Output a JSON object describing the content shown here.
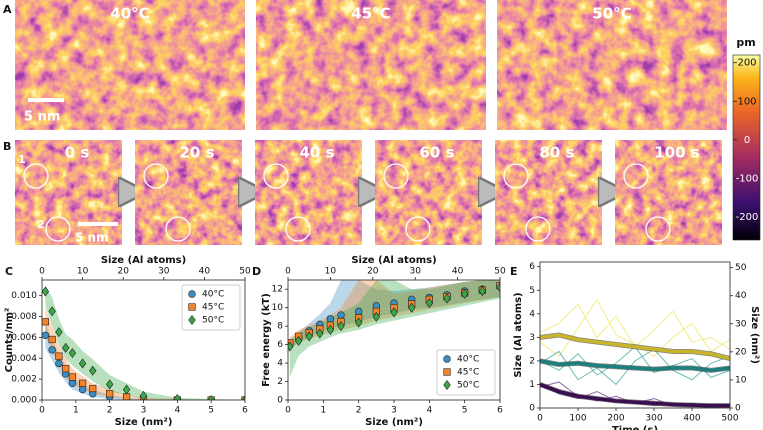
{
  "panel_a": {
    "label": "A",
    "temperatures": [
      "40°C",
      "45°C",
      "50°C"
    ],
    "scale_bar": "5 nm"
  },
  "panel_b": {
    "label": "B",
    "times": [
      "0 s",
      "20 s",
      "40 s",
      "60 s",
      "80 s",
      "100 s"
    ],
    "markers": [
      "1",
      "2"
    ],
    "scale_bar": "5 nm"
  },
  "colorbar": {
    "unit": "pm",
    "ylim": [
      -260,
      220
    ],
    "ticks": [
      200,
      100,
      0,
      -100,
      -200
    ]
  },
  "chart_data": [
    {
      "type": "scatter",
      "panel": "C",
      "xlabel": "Size (nm²)",
      "ylabel": "Counts/nm²",
      "x2label": "Size (Al atoms)",
      "x": [
        0.1,
        0.3,
        0.5,
        0.7,
        0.9,
        1.2,
        1.5,
        2,
        2.5,
        3,
        4,
        5,
        6
      ],
      "xlim": [
        0,
        6
      ],
      "xticks": [
        0,
        1,
        2,
        3,
        4,
        5,
        6
      ],
      "x2lim": [
        0,
        50
      ],
      "x2ticks": [
        0,
        10,
        20,
        30,
        40,
        50
      ],
      "ylim": [
        0,
        0.0115
      ],
      "yticks": [
        {
          "value": 0,
          "label": "0.000"
        },
        {
          "value": 0.002,
          "label": "0.002"
        },
        {
          "value": 0.004,
          "label": "0.004"
        },
        {
          "value": 0.006,
          "label": "0.006"
        },
        {
          "value": 0.008,
          "label": "0.008"
        },
        {
          "value": 0.01,
          "label": "0.010"
        }
      ],
      "legend": "upper right",
      "series": [
        {
          "name": "40°C",
          "color": "#3c8fc4",
          "marker": "circle",
          "values": [
            0.0062,
            0.0048,
            0.0035,
            0.0025,
            0.0016,
            0.001,
            0.0006,
            0.0003,
            0.0001,
            0,
            0,
            0,
            0
          ],
          "lower": [
            0.005,
            0.0038,
            0.0026,
            0.0017,
            0.001,
            0.0006,
            0.0003,
            0.0001,
            0,
            0,
            0,
            0,
            0
          ],
          "upper": [
            0.0074,
            0.0058,
            0.0044,
            0.0033,
            0.0022,
            0.0015,
            0.001,
            0.0005,
            0.0002,
            0.0001,
            0,
            0,
            0
          ]
        },
        {
          "name": "45°C",
          "color": "#f5832a",
          "marker": "square",
          "values": [
            0.0075,
            0.0058,
            0.0042,
            0.003,
            0.0022,
            0.0016,
            0.0011,
            0.0006,
            0.0003,
            0.0001,
            0,
            0,
            0
          ],
          "lower": [
            0.0062,
            0.0047,
            0.0033,
            0.0022,
            0.0015,
            0.001,
            0.0006,
            0.0003,
            0.0001,
            0,
            0,
            0,
            0
          ],
          "upper": [
            0.0088,
            0.007,
            0.0052,
            0.0039,
            0.003,
            0.0023,
            0.0016,
            0.001,
            0.0005,
            0.0002,
            0.0001,
            0,
            0
          ]
        },
        {
          "name": "50°C",
          "color": "#3aa849",
          "marker": "diamond",
          "values": [
            0.0104,
            0.0085,
            0.0065,
            0.005,
            0.0045,
            0.0035,
            0.0028,
            0.0015,
            0.001,
            0.0004,
            0.0001,
            0,
            0
          ],
          "lower": [
            0.009,
            0.0071,
            0.0053,
            0.0039,
            0.0033,
            0.0025,
            0.0018,
            0.0008,
            0.0005,
            0.0001,
            0,
            0,
            0
          ],
          "upper": [
            0.011,
            0.0098,
            0.0078,
            0.0063,
            0.0058,
            0.0047,
            0.0039,
            0.0024,
            0.0016,
            0.0008,
            0.0002,
            0.0001,
            0
          ]
        }
      ]
    },
    {
      "type": "scatter",
      "panel": "D",
      "xlabel": "Size (nm²)",
      "ylabel": "Free energy (kT)",
      "x2label": "Size (Al atoms)",
      "x": [
        0.05,
        0.3,
        0.6,
        0.9,
        1.2,
        1.5,
        2,
        2.5,
        3,
        3.5,
        4,
        4.5,
        5,
        5.5,
        6
      ],
      "xlim": [
        0,
        6
      ],
      "xticks": [
        0,
        1,
        2,
        3,
        4,
        5,
        6
      ],
      "x2lim": [
        0,
        50
      ],
      "x2ticks": [
        0,
        10,
        20,
        30,
        40,
        50
      ],
      "ylim": [
        0,
        13
      ],
      "yticks": [
        0,
        2,
        4,
        6,
        8,
        10,
        12
      ],
      "legend": "lower right",
      "series": [
        {
          "name": "40°C",
          "color": "#3c8fc4",
          "marker": "circle",
          "values": [
            6.0,
            6.8,
            7.5,
            8.2,
            8.8,
            9.2,
            9.6,
            10.2,
            10.5,
            10.9,
            11.1,
            11.4,
            11.8,
            12.0,
            12.3
          ],
          "lower": [
            5.5,
            6.2,
            6.8,
            7.4,
            7.8,
            8.0,
            8.5,
            9.0,
            9.4,
            9.8,
            10.0,
            10.3,
            10.6,
            10.9,
            11.1
          ],
          "upper": [
            6.5,
            7.4,
            8.3,
            9.3,
            10.5,
            13,
            13,
            12,
            11.8,
            12,
            12.2,
            12.5,
            12.8,
            13,
            13
          ]
        },
        {
          "name": "45°C",
          "color": "#f5832a",
          "marker": "square",
          "values": [
            6.2,
            6.9,
            7.3,
            7.7,
            8.1,
            8.5,
            8.9,
            9.6,
            10.0,
            10.4,
            10.9,
            11.2,
            11.6,
            11.9,
            12.4
          ],
          "lower": [
            5.6,
            6.2,
            6.6,
            7.0,
            7.3,
            7.6,
            8.0,
            8.6,
            9.0,
            9.4,
            9.8,
            10.1,
            10.5,
            10.8,
            11.2
          ],
          "upper": [
            6.8,
            7.6,
            8.1,
            8.6,
            9.2,
            10,
            13,
            13,
            11.5,
            11.8,
            12.2,
            12.5,
            12.8,
            13,
            13
          ]
        },
        {
          "name": "50°C",
          "color": "#3aa849",
          "marker": "diamond",
          "values": [
            5.8,
            6.4,
            6.9,
            7.2,
            7.6,
            8.0,
            8.4,
            9.0,
            9.5,
            10.0,
            10.5,
            11.0,
            11.5,
            11.8,
            12.2
          ],
          "lower": [
            2.5,
            4.8,
            5.8,
            6.3,
            6.8,
            7.2,
            7.6,
            8.2,
            8.6,
            9.0,
            9.4,
            9.8,
            10.2,
            10.6,
            11.0
          ],
          "upper": [
            6.2,
            7.2,
            7.9,
            8.4,
            8.9,
            9.5,
            10.5,
            13,
            13,
            12,
            12,
            12.4,
            12.8,
            13,
            13
          ]
        }
      ]
    },
    {
      "type": "line",
      "panel": "E",
      "xlabel": "Time (s)",
      "ylabel": "Size (Al atoms)",
      "y2label": "Size (nm²)",
      "x": [
        0,
        50,
        100,
        150,
        200,
        250,
        300,
        350,
        400,
        450,
        500
      ],
      "xlim": [
        0,
        500
      ],
      "xticks": [
        0,
        100,
        200,
        300,
        400,
        500
      ],
      "ylim": [
        0,
        6.2
      ],
      "yticks": [
        0,
        1,
        2,
        3,
        4,
        5,
        6
      ],
      "y2lim": [
        0,
        52
      ],
      "y2ticks": [
        0,
        10,
        20,
        30,
        40,
        50
      ],
      "series": [
        {
          "color": "#f2e460",
          "width": 1,
          "values": [
            3.2,
            3.6,
            4.4,
            3.0,
            3.9,
            2.6,
            3.3,
            4.1,
            2.8,
            3.0,
            2.5
          ]
        },
        {
          "color": "#f2e460",
          "width": 1,
          "values": [
            2.8,
            2.2,
            3.4,
            4.6,
            3.1,
            2.7,
            2.2,
            3.0,
            3.6,
            2.4,
            2.9
          ]
        },
        {
          "color": "#3aa6a0",
          "width": 1,
          "values": [
            2.0,
            1.6,
            2.3,
            1.4,
            1.9,
            2.6,
            1.5,
            1.8,
            2.1,
            1.3,
            1.6
          ]
        },
        {
          "color": "#3aa6a0",
          "width": 1,
          "values": [
            1.9,
            2.4,
            1.2,
            1.7,
            1.0,
            2.0,
            2.5,
            1.6,
            1.2,
            1.9,
            2.2
          ]
        },
        {
          "color": "#6a3a8a",
          "width": 1,
          "values": [
            1.0,
            0.6,
            0.4,
            0.7,
            0.3,
            0.2,
            0.4,
            0.1,
            0.2,
            0.1,
            0.1
          ]
        },
        {
          "color": "#6a3a8a",
          "width": 1,
          "values": [
            0.9,
            1.1,
            0.5,
            0.3,
            0.5,
            0.2,
            0.1,
            0.2,
            0.1,
            0.0,
            0.1
          ]
        },
        {
          "color": "#c9b42a",
          "width": 3.5,
          "values": [
            3.0,
            3.1,
            2.9,
            2.8,
            2.7,
            2.6,
            2.5,
            2.4,
            2.4,
            2.3,
            2.1
          ]
        },
        {
          "color": "#1d7f7d",
          "width": 3.5,
          "values": [
            2.0,
            1.85,
            1.9,
            1.8,
            1.75,
            1.7,
            1.65,
            1.7,
            1.7,
            1.6,
            1.7
          ]
        },
        {
          "color": "#3b0f4f",
          "width": 3.5,
          "values": [
            1.0,
            0.7,
            0.5,
            0.4,
            0.3,
            0.25,
            0.2,
            0.15,
            0.12,
            0.1,
            0.1
          ]
        }
      ]
    }
  ]
}
